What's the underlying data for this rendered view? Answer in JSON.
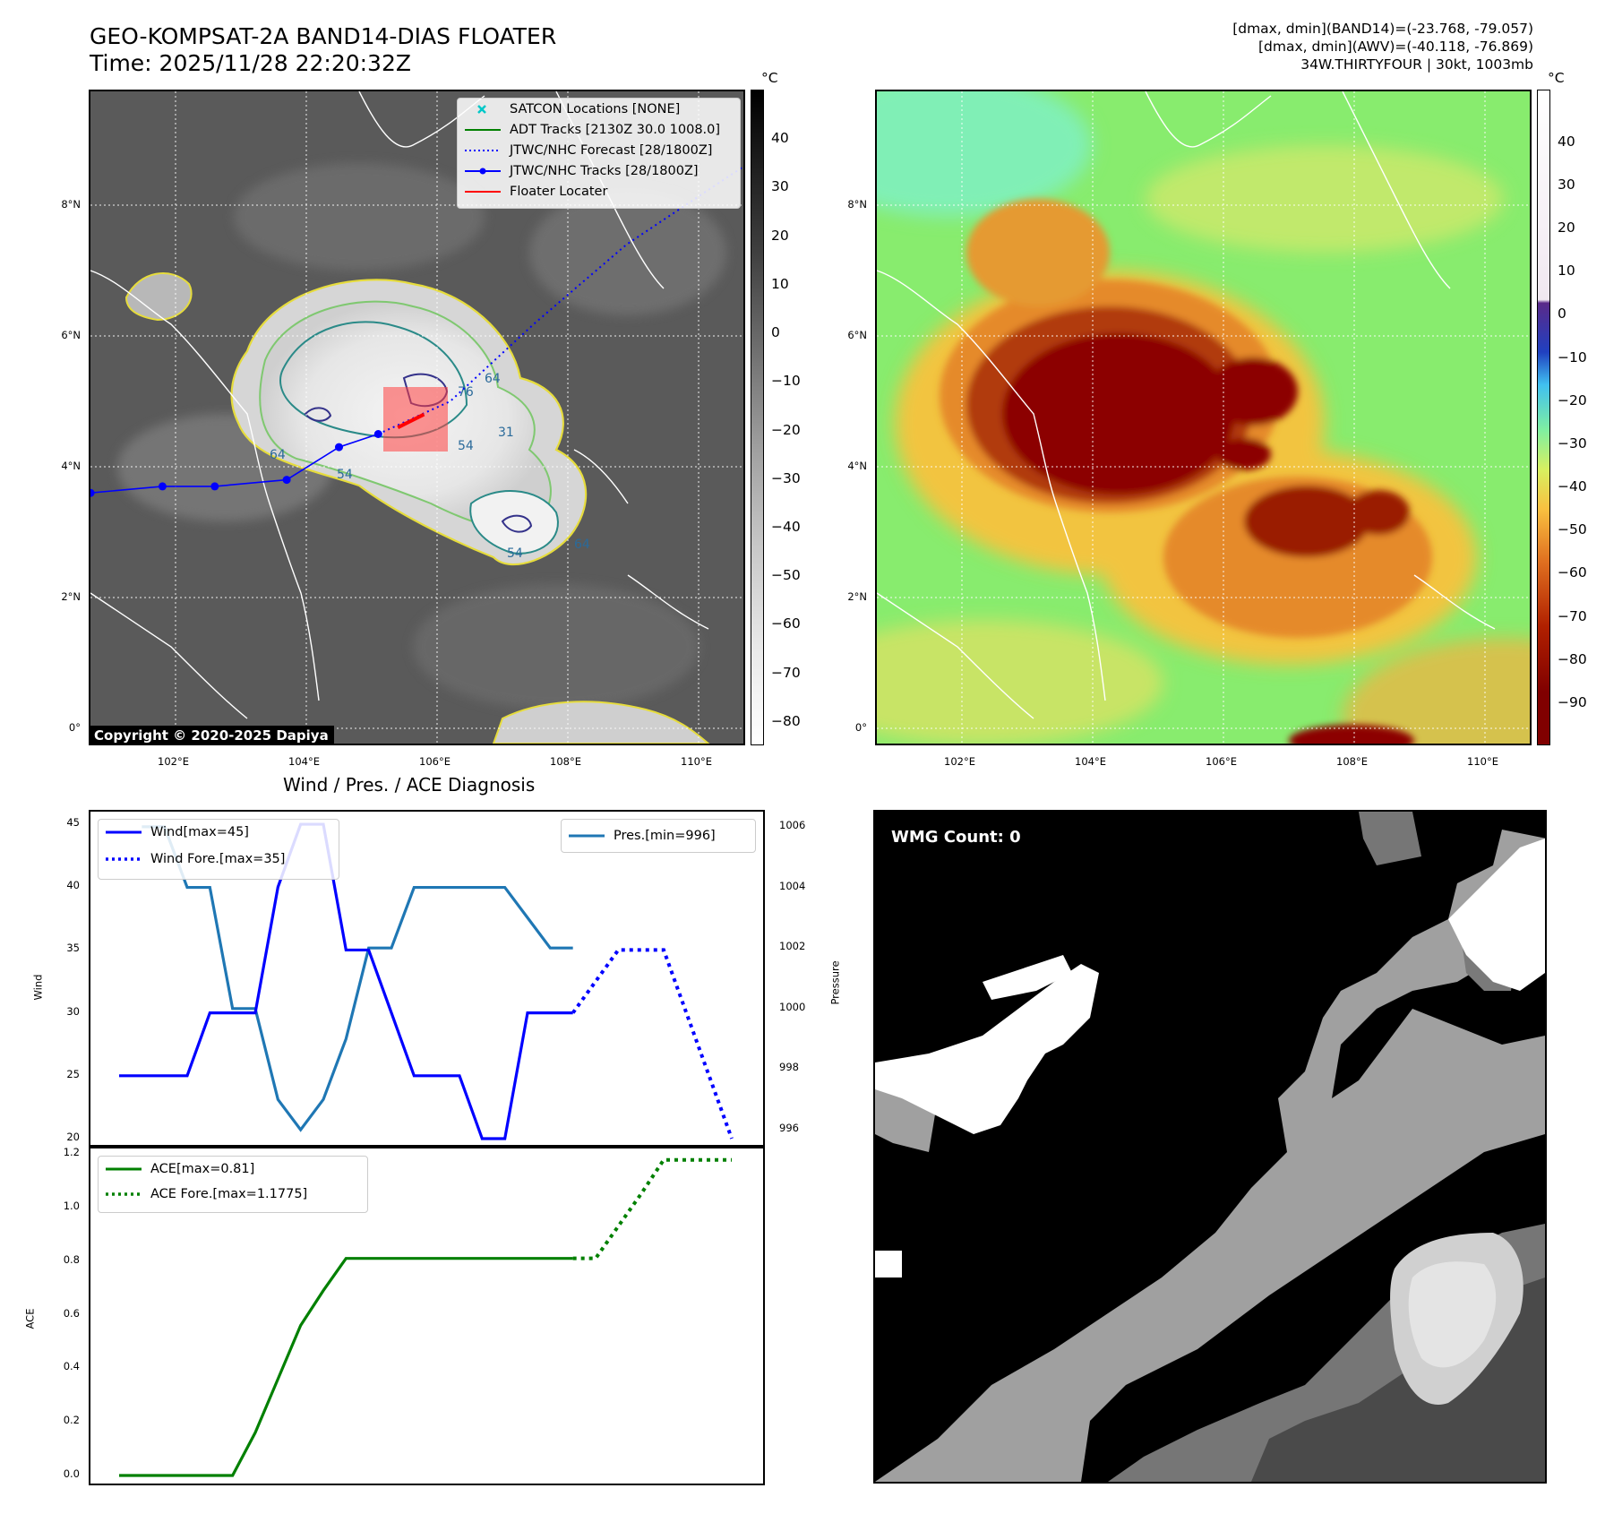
{
  "header": {
    "title_line1": "GEO-KOMPSAT-2A BAND14-DIAS FLOATER",
    "title_line2": "Time: 2025/11/28 22:20:32Z",
    "info_line1": "[dmax, dmin](BAND14)=(-23.768, -79.057)",
    "info_line2": "[dmax, dmin](AWV)=(-40.118, -76.869)",
    "info_line3": "34W.THIRTYFOUR | 30kt, 1003mb"
  },
  "map_ir": {
    "lat_ticks": [
      "8°N",
      "6°N",
      "4°N",
      "2°N",
      "0°"
    ],
    "lon_ticks": [
      "102°E",
      "104°E",
      "106°E",
      "108°E",
      "110°E"
    ],
    "contour_labels": [
      "64",
      "54",
      "76",
      "64",
      "54",
      "31",
      "54",
      "64"
    ],
    "copyright": "Copyright © 2020-2025 Dapiya",
    "legend": [
      {
        "label": "SATCON Locations [NONE]",
        "color": "#00c8c8",
        "style": "x"
      },
      {
        "label": "ADT Tracks [2130Z 30.0 1008.0]",
        "color": "#008000",
        "style": "solid"
      },
      {
        "label": "JTWC/NHC Forecast [28/1800Z]",
        "color": "#0000ff",
        "style": "dotted"
      },
      {
        "label": "JTWC/NHC Tracks [28/1800Z]",
        "color": "#0000ff",
        "style": "solid-dot"
      },
      {
        "label": "Floater Locater",
        "color": "#ff0000",
        "style": "solid"
      }
    ],
    "colorbar_unit": "°C",
    "colorbar_ticks": [
      "40",
      "30",
      "20",
      "10",
      "0",
      "−10",
      "−20",
      "−30",
      "−40",
      "−50",
      "−60",
      "−70",
      "−80"
    ],
    "track_points": [
      [
        100.7,
        3.6
      ],
      [
        101.8,
        3.7
      ],
      [
        102.6,
        3.7
      ],
      [
        103.7,
        3.8
      ],
      [
        104.5,
        4.3
      ],
      [
        105.1,
        4.5
      ]
    ],
    "forecast_points": [
      [
        105.1,
        4.5
      ],
      [
        106.2,
        5.0
      ],
      [
        107.5,
        6.2
      ],
      [
        108.9,
        7.4
      ],
      [
        110.7,
        8.6
      ]
    ]
  },
  "map_awv": {
    "lat_ticks": [
      "8°N",
      "6°N",
      "4°N",
      "2°N",
      "0°"
    ],
    "lon_ticks": [
      "102°E",
      "104°E",
      "106°E",
      "108°E",
      "110°E"
    ],
    "colorbar_unit": "°C",
    "colorbar_ticks": [
      "40",
      "30",
      "20",
      "10",
      "0",
      "−10",
      "−20",
      "−30",
      "−40",
      "−50",
      "−60",
      "−70",
      "−80",
      "−90"
    ]
  },
  "diagnosis": {
    "title": "Wind / Pres. / ACE Diagnosis",
    "wind_ylabel": "Wind",
    "pres_ylabel": "Pressure",
    "ace_ylabel": "ACE",
    "wind_ticks": [
      "45",
      "40",
      "35",
      "30",
      "25",
      "20"
    ],
    "pres_ticks": [
      "1006",
      "1004",
      "1002",
      "1000",
      "998",
      "996"
    ],
    "ace_ticks": [
      "1.2",
      "1.0",
      "0.8",
      "0.6",
      "0.4",
      "0.2",
      "0.0"
    ],
    "legend_wind": "Wind[max=45]",
    "legend_wind_fore": "Wind Fore.[max=35]",
    "legend_pres": "Pres.[min=996]",
    "legend_ace": "ACE[max=0.81]",
    "legend_ace_fore": "ACE Fore.[max=1.1775]"
  },
  "wmg": {
    "label": "WMG Count: 0"
  },
  "chart_data": [
    {
      "type": "line",
      "title": "Wind / Pres. / ACE Diagnosis",
      "ylabel": "Wind",
      "ylim": [
        19.5,
        46
      ],
      "xlim": [
        0,
        28
      ],
      "series": [
        {
          "name": "Wind[max=45]",
          "color": "#0000ff",
          "style": "solid",
          "x": [
            0,
            3,
            4,
            5,
            6,
            7,
            8,
            9,
            10,
            11,
            12,
            13,
            14,
            15,
            16,
            17,
            18,
            19,
            20
          ],
          "values": [
            25,
            25,
            30,
            30,
            30,
            40,
            45,
            45,
            35,
            35,
            30,
            25,
            25,
            25,
            20,
            20,
            30,
            30,
            30
          ]
        },
        {
          "name": "Wind Fore.[max=35]",
          "color": "#0000ff",
          "style": "dotted",
          "x": [
            20,
            21,
            22,
            23,
            24,
            25,
            26,
            27
          ],
          "values": [
            30,
            32.5,
            35,
            35,
            35,
            30,
            25,
            20
          ]
        }
      ]
    },
    {
      "type": "line",
      "ylabel": "Pressure",
      "ylim": [
        995.5,
        1006.5
      ],
      "series": [
        {
          "name": "Pres.[min=996]",
          "color": "#1f77b4",
          "style": "solid",
          "x": [
            1,
            2,
            3,
            4,
            5,
            6,
            7,
            8,
            9,
            10,
            11,
            12,
            13,
            14,
            15,
            16,
            17,
            18,
            19,
            20
          ],
          "values": [
            1006,
            1006,
            1004,
            1004,
            1000,
            1000,
            997,
            996,
            997,
            999,
            1002,
            1002,
            1004,
            1004,
            1004,
            1004,
            1004,
            1003,
            1002,
            1002
          ]
        }
      ]
    },
    {
      "type": "line",
      "ylabel": "ACE",
      "ylim": [
        -0.03,
        1.22
      ],
      "xlim": [
        0,
        28
      ],
      "series": [
        {
          "name": "ACE[max=0.81]",
          "color": "#008000",
          "style": "solid",
          "x": [
            0,
            1,
            2,
            3,
            4,
            5,
            6,
            7,
            8,
            9,
            10,
            11,
            12,
            13,
            14,
            15,
            16,
            17,
            18,
            19,
            20
          ],
          "values": [
            0,
            0,
            0,
            0,
            0,
            0,
            0.16,
            0.36,
            0.56,
            0.69,
            0.81,
            0.81,
            0.81,
            0.81,
            0.81,
            0.81,
            0.81,
            0.81,
            0.81,
            0.81,
            0.81
          ]
        },
        {
          "name": "ACE Fore.[max=1.1775]",
          "color": "#008000",
          "style": "dotted",
          "x": [
            20,
            21,
            22,
            23,
            24,
            25,
            26,
            27
          ],
          "values": [
            0.81,
            0.81,
            0.93,
            1.05,
            1.1775,
            1.1775,
            1.1775,
            1.1775
          ]
        }
      ]
    }
  ]
}
